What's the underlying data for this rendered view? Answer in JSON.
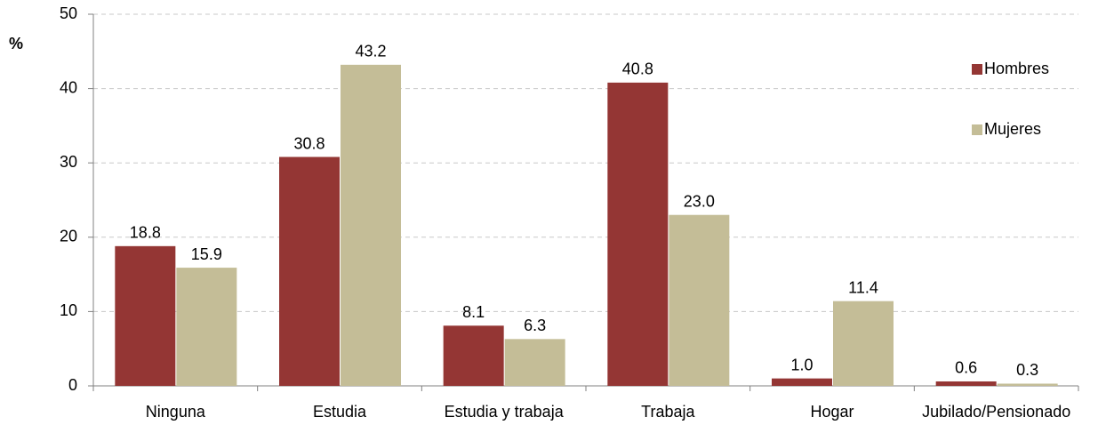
{
  "chart_data": {
    "type": "bar",
    "ylabel": "%",
    "categories": [
      "Ninguna",
      "Estudia",
      "Estudia y trabaja",
      "Trabaja",
      "Hogar",
      "Jubilado/Pensionado"
    ],
    "series": [
      {
        "name": "Hombres",
        "color": "#943634",
        "values": [
          18.8,
          30.8,
          8.1,
          40.8,
          1.0,
          0.6
        ],
        "value_labels": [
          "18.8",
          "30.8",
          "8.1",
          "40.8",
          "1.0",
          "0.6"
        ]
      },
      {
        "name": "Mujeres",
        "color": "#c4bd97",
        "values": [
          15.9,
          43.2,
          6.3,
          23.0,
          11.4,
          0.3
        ],
        "value_labels": [
          "15.9",
          "43.2",
          "6.3",
          "23.0",
          "11.4",
          "0.3"
        ]
      }
    ],
    "ylim": [
      0,
      50
    ],
    "yticks": [
      0,
      10,
      20,
      30,
      40,
      50
    ],
    "grid": true,
    "legend": "upper right"
  }
}
